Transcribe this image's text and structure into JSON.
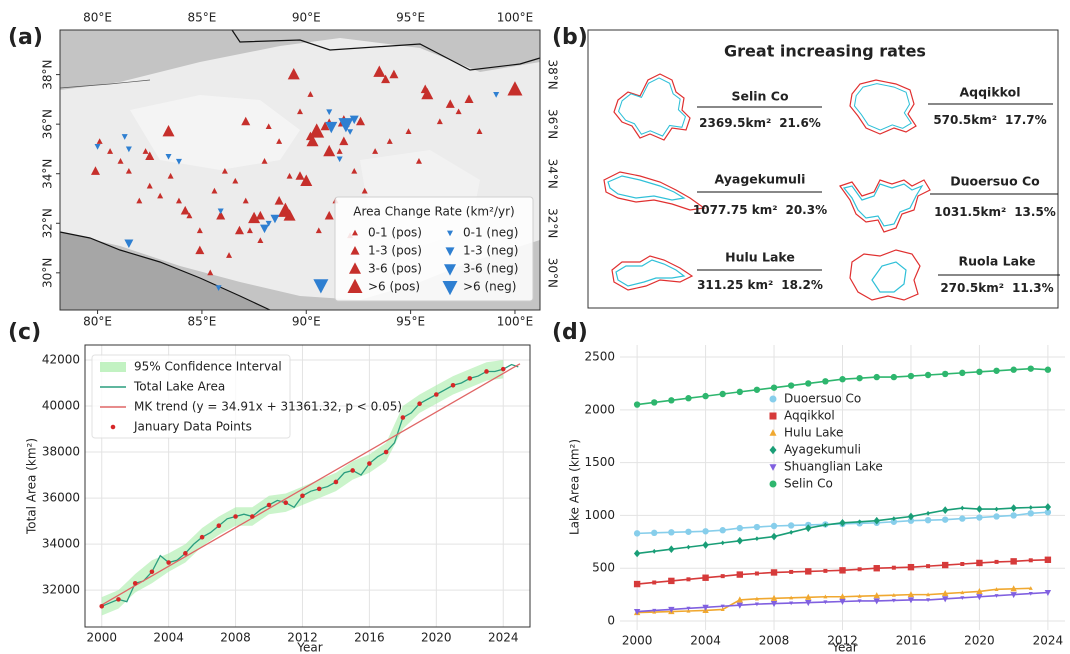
{
  "panel_labels": [
    "(a)",
    "(b)",
    "(c)",
    "(d)"
  ],
  "lakes_panel": {
    "title": "Great increasing rates",
    "lakes": [
      {
        "name": "Selin Co",
        "area": "2369.5km²",
        "rate": "21.6%"
      },
      {
        "name": "Aqqikkol",
        "area": "570.5km²",
        "rate": "17.7%"
      },
      {
        "name": "Ayagekumuli",
        "area": "1077.75 km²",
        "rate": "20.3%"
      },
      {
        "name": "Duoersuo Co",
        "area": "1031.5km²",
        "rate": "13.5%"
      },
      {
        "name": "Hulu Lake",
        "area": "311.25 km²",
        "rate": "18.2%"
      },
      {
        "name": "Ruola Lake",
        "area": "270.5km²",
        "rate": "11.3%"
      }
    ]
  },
  "chart_data": [
    {
      "type": "scatter",
      "legend_title": "Area Change Rate (km²/yr)",
      "legend": "lower right",
      "grid": false,
      "frame": true,
      "mirror_ticks": true,
      "xlim": [
        78.2,
        101.2
      ],
      "ylim": [
        28.5,
        39.8
      ],
      "xticks": [
        {
          "value": 80,
          "label": "80°E"
        },
        {
          "value": 85,
          "label": "85°E"
        },
        {
          "value": 90,
          "label": "90°E"
        },
        {
          "value": 95,
          "label": "95°E"
        },
        {
          "value": 100,
          "label": "100°E"
        }
      ],
      "yticks": [
        {
          "value": 30,
          "label": "30°N"
        },
        {
          "value": 32,
          "label": "32°N"
        },
        {
          "value": 34,
          "label": "34°N"
        },
        {
          "value": 36,
          "label": "36°N"
        },
        {
          "value": 38,
          "label": "38°N"
        }
      ],
      "series": [
        {
          "name": "0-1 (pos)",
          "style": "points",
          "marker": "triangle-up",
          "color": "#c62f2b",
          "x": [
            80.1,
            80.6,
            81.1,
            81.5,
            82.3,
            82.5,
            83.0,
            82.0,
            83.5,
            83.9,
            84.4,
            84.9,
            85.6,
            86.1,
            86.6,
            87.1,
            87.3,
            87.8,
            88.2,
            88.7,
            89.7,
            90.2,
            91.1,
            91.6,
            92.3,
            92.8,
            93.3,
            94.0,
            94.9,
            95.4,
            96.4,
            97.3,
            98.3,
            85.4,
            86.3,
            90.6,
            91.4,
            92.1,
            89.2,
            88.0
          ],
          "y": [
            35.3,
            34.9,
            34.5,
            34.1,
            34.9,
            33.5,
            33.1,
            32.9,
            33.9,
            32.9,
            32.3,
            31.7,
            33.3,
            34.1,
            33.7,
            32.9,
            31.7,
            31.3,
            35.9,
            35.3,
            36.5,
            37.2,
            36.1,
            34.9,
            34.1,
            33.3,
            34.9,
            35.3,
            35.7,
            34.5,
            36.1,
            36.5,
            35.7,
            30.0,
            30.7,
            31.7,
            32.9,
            31.5,
            33.9,
            34.5
          ]
        },
        {
          "name": "1-3 (pos)",
          "style": "points",
          "marker": "triangle-up",
          "color": "#c62f2b",
          "x": [
            79.9,
            82.5,
            84.9,
            86.8,
            87.8,
            88.7,
            89.7,
            90.2,
            90.9,
            91.8,
            92.6,
            93.8,
            94.2,
            95.7,
            96.9,
            97.8,
            87.1,
            84.2,
            85.9,
            91.1
          ],
          "y": [
            34.1,
            34.7,
            30.9,
            31.7,
            32.3,
            32.9,
            33.9,
            35.5,
            35.9,
            35.3,
            36.1,
            37.8,
            38.0,
            37.4,
            36.8,
            37.0,
            36.1,
            32.5,
            32.3,
            32.3
          ]
        },
        {
          "name": "3-6 (pos)",
          "style": "points",
          "marker": "triangle-up",
          "color": "#c62f2b",
          "x": [
            83.4,
            89.4,
            93.5,
            95.8,
            90.0,
            90.3,
            91.1,
            89.2,
            87.5,
            91.8
          ],
          "y": [
            35.7,
            38.0,
            38.1,
            37.2,
            33.7,
            35.3,
            34.9,
            32.3,
            32.2,
            36.1
          ]
        },
        {
          "name": ">6 (pos)",
          "style": "points",
          "marker": "triangle-up",
          "color": "#c62f2b",
          "x": [
            90.5,
            100.0,
            89.0
          ],
          "y": [
            35.7,
            37.4,
            32.5
          ]
        },
        {
          "name": "0-1 (neg)",
          "style": "points",
          "marker": "triangle-down",
          "color": "#2e7fd1",
          "x": [
            80.0,
            81.3,
            81.5,
            83.4,
            83.9,
            85.9,
            88.2,
            91.6,
            92.1,
            99.1,
            85.8,
            91.1
          ],
          "y": [
            35.1,
            35.5,
            35.0,
            34.7,
            34.5,
            32.5,
            32.0,
            34.6,
            35.7,
            37.2,
            29.4,
            36.5
          ]
        },
        {
          "name": "1-3 (neg)",
          "style": "points",
          "marker": "triangle-down",
          "color": "#2e7fd1",
          "x": [
            81.5,
            88.0,
            88.5,
            92.3
          ],
          "y": [
            31.2,
            31.8,
            32.2,
            36.2
          ]
        },
        {
          "name": "3-6 (neg)",
          "style": "points",
          "marker": "triangle-down",
          "color": "#2e7fd1",
          "x": [
            91.2
          ],
          "y": [
            35.9
          ]
        },
        {
          "name": ">6 (neg)",
          "style": "points",
          "marker": "triangle-down",
          "color": "#2e7fd1",
          "x": [
            91.9,
            90.7
          ],
          "y": [
            36.0,
            29.5
          ]
        }
      ]
    },
    {
      "type": "line",
      "xlabel": "Year",
      "ylabel": "Total Area (km²)",
      "legend": "upper left",
      "grid": true,
      "frame": true,
      "mirror_ticks": false,
      "xlim": [
        1999,
        2025.6
      ],
      "ylim": [
        30400,
        42650
      ],
      "xticks": [
        2000,
        2004,
        2008,
        2012,
        2016,
        2020,
        2024
      ],
      "yticks": [
        32000,
        34000,
        36000,
        38000,
        40000,
        42000
      ],
      "series": [
        {
          "name": "95% Confidence Interval",
          "style": "band",
          "color": "#a8eca8",
          "x": [
            2000,
            2001,
            2002,
            2003,
            2004,
            2005,
            2006,
            2007,
            2008,
            2009,
            2010,
            2011,
            2012,
            2013,
            2014,
            2015,
            2016,
            2017,
            2018,
            2019,
            2020,
            2021,
            2022,
            2023,
            2024
          ],
          "lower": [
            30900,
            31200,
            31900,
            32300,
            32800,
            33200,
            33900,
            34400,
            34800,
            34800,
            35300,
            35400,
            35700,
            36000,
            36300,
            36800,
            37100,
            37600,
            39000,
            39700,
            40100,
            40500,
            40800,
            41100,
            41200
          ],
          "upper": [
            31700,
            32000,
            32700,
            33300,
            33600,
            34000,
            34700,
            35200,
            35600,
            35600,
            36100,
            36200,
            36500,
            36800,
            37100,
            37600,
            37900,
            38400,
            40000,
            40500,
            40900,
            41300,
            41600,
            41900,
            42000
          ]
        },
        {
          "name": "Total Lake Area",
          "style": "line",
          "color": "#2a9d7f",
          "x": [
            2000,
            2000.5,
            2001,
            2001.5,
            2002,
            2002.5,
            2003,
            2003.5,
            2004,
            2004.5,
            2005,
            2005.5,
            2006,
            2006.5,
            2007,
            2007.5,
            2008,
            2008.5,
            2009,
            2009.5,
            2010,
            2010.5,
            2011,
            2011.5,
            2012,
            2012.5,
            2013,
            2013.5,
            2014,
            2014.5,
            2015,
            2015.5,
            2016,
            2016.5,
            2017,
            2017.5,
            2018,
            2018.5,
            2019,
            2019.5,
            2020,
            2020.5,
            2021,
            2021.5,
            2022,
            2022.5,
            2023,
            2023.5,
            2024,
            2024.5,
            2024.9
          ],
          "values": [
            31300,
            31450,
            31600,
            31500,
            32300,
            32400,
            32800,
            33500,
            33200,
            33300,
            33600,
            34000,
            34300,
            34500,
            34800,
            35100,
            35200,
            35300,
            35200,
            35500,
            35700,
            35900,
            35800,
            35600,
            36100,
            36300,
            36400,
            36500,
            36700,
            37100,
            37200,
            37000,
            37500,
            37800,
            38000,
            38400,
            39500,
            39700,
            40100,
            40300,
            40500,
            40700,
            40900,
            41000,
            41200,
            41300,
            41500,
            41500,
            41600,
            41800,
            41700
          ]
        },
        {
          "name": "MK trend (y = 34.91x + 31361.32, p < 0.05)",
          "style": "line",
          "color": "#e06666",
          "x": [
            2000,
            2025
          ],
          "values": [
            31361,
            41834
          ]
        },
        {
          "name": "January Data Points",
          "style": "points",
          "marker": "circle",
          "color": "#d62728",
          "x": [
            2000,
            2001,
            2002,
            2003,
            2004,
            2005,
            2006,
            2007,
            2008,
            2009,
            2010,
            2011,
            2012,
            2013,
            2014,
            2015,
            2016,
            2017,
            2018,
            2019,
            2020,
            2021,
            2022,
            2023,
            2024
          ],
          "values": [
            31300,
            31600,
            32300,
            32800,
            33200,
            33600,
            34300,
            34800,
            35200,
            35200,
            35700,
            35800,
            36100,
            36400,
            36700,
            37200,
            37500,
            38000,
            39500,
            40100,
            40500,
            40900,
            41200,
            41500,
            41600
          ]
        }
      ]
    },
    {
      "type": "line",
      "xlabel": "Year",
      "ylabel": "Lake Area (km²)",
      "legend": "center",
      "grid": true,
      "frame": false,
      "mirror_ticks": false,
      "xlim": [
        1999,
        2025
      ],
      "ylim": [
        -85,
        2614
      ],
      "xticks": [
        2000,
        2004,
        2008,
        2012,
        2016,
        2020,
        2024
      ],
      "yticks": [
        0,
        500,
        1000,
        1500,
        2000,
        2500
      ],
      "series": [
        {
          "name": "Duoersuo Co",
          "style": "line",
          "marker": "circle",
          "color": "#87ceeb",
          "x": [
            2000,
            2001,
            2002,
            2003,
            2004,
            2005,
            2006,
            2007,
            2008,
            2009,
            2010,
            2011,
            2012,
            2013,
            2014,
            2015,
            2016,
            2017,
            2018,
            2019,
            2020,
            2021,
            2022,
            2023,
            2024
          ],
          "values": [
            830,
            835,
            840,
            845,
            850,
            860,
            880,
            890,
            900,
            905,
            910,
            915,
            920,
            925,
            930,
            940,
            950,
            955,
            960,
            970,
            980,
            990,
            1000,
            1020,
            1030
          ]
        },
        {
          "name": "Aqqikkol",
          "style": "line",
          "marker": "square",
          "color": "#d63a3a",
          "x": [
            2000,
            2001,
            2002,
            2003,
            2004,
            2005,
            2006,
            2007,
            2008,
            2009,
            2010,
            2011,
            2012,
            2013,
            2014,
            2015,
            2016,
            2017,
            2018,
            2019,
            2020,
            2021,
            2022,
            2023,
            2024
          ],
          "values": [
            350,
            365,
            380,
            395,
            410,
            425,
            440,
            450,
            460,
            465,
            470,
            475,
            480,
            490,
            500,
            505,
            510,
            520,
            530,
            540,
            550,
            560,
            565,
            575,
            580
          ]
        },
        {
          "name": "Hulu Lake",
          "style": "line",
          "marker": "triangle-up",
          "color": "#f0a830",
          "x": [
            2000,
            2001,
            2002,
            2003,
            2004,
            2005,
            2006,
            2007,
            2008,
            2009,
            2010,
            2011,
            2012,
            2013,
            2014,
            2015,
            2016,
            2017,
            2018,
            2019,
            2020,
            2021,
            2022,
            2023,
            2024
          ],
          "values": [
            80,
            85,
            90,
            95,
            100,
            110,
            200,
            210,
            215,
            220,
            225,
            230,
            230,
            235,
            240,
            245,
            250,
            250,
            260,
            270,
            280,
            300,
            305,
            310,
            null
          ]
        },
        {
          "name": "Ayagekumuli",
          "style": "line",
          "marker": "diamond",
          "color": "#1a9e77",
          "x": [
            2000,
            2001,
            2002,
            2003,
            2004,
            2005,
            2006,
            2007,
            2008,
            2009,
            2010,
            2011,
            2012,
            2013,
            2014,
            2015,
            2016,
            2017,
            2018,
            2019,
            2020,
            2021,
            2022,
            2023,
            2024
          ],
          "values": [
            640,
            660,
            680,
            700,
            720,
            740,
            760,
            780,
            800,
            840,
            880,
            910,
            930,
            940,
            950,
            970,
            990,
            1020,
            1050,
            1070,
            1060,
            1060,
            1070,
            1075,
            1080
          ]
        },
        {
          "name": "Shuanglian Lake",
          "style": "line",
          "marker": "triangle-down",
          "color": "#8060e0",
          "x": [
            2000,
            2001,
            2002,
            2003,
            2004,
            2005,
            2006,
            2007,
            2008,
            2009,
            2010,
            2011,
            2012,
            2013,
            2014,
            2015,
            2016,
            2017,
            2018,
            2019,
            2020,
            2021,
            2022,
            2023,
            2024
          ],
          "values": [
            90,
            100,
            110,
            120,
            130,
            140,
            150,
            160,
            165,
            170,
            175,
            180,
            185,
            190,
            190,
            195,
            200,
            200,
            210,
            220,
            230,
            240,
            250,
            260,
            270
          ]
        },
        {
          "name": "Selin Co",
          "style": "line",
          "marker": "circle",
          "color": "#2eb66e",
          "x": [
            2000,
            2001,
            2002,
            2003,
            2004,
            2005,
            2006,
            2007,
            2008,
            2009,
            2010,
            2011,
            2012,
            2013,
            2014,
            2015,
            2016,
            2017,
            2018,
            2019,
            2020,
            2021,
            2022,
            2023,
            2024
          ],
          "values": [
            2050,
            2070,
            2090,
            2110,
            2130,
            2150,
            2170,
            2190,
            2210,
            2230,
            2250,
            2270,
            2290,
            2300,
            2310,
            2310,
            2320,
            2330,
            2340,
            2350,
            2360,
            2370,
            2380,
            2390,
            2380
          ]
        }
      ]
    }
  ]
}
